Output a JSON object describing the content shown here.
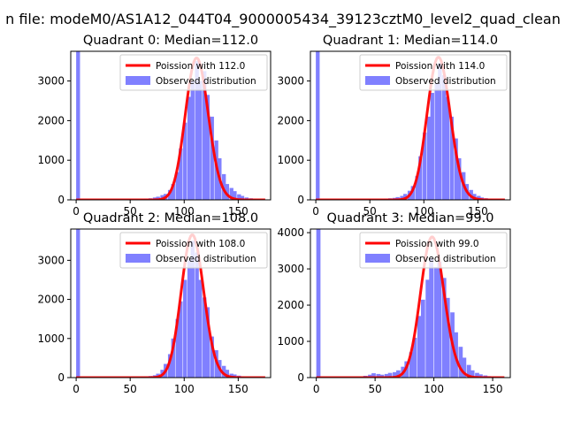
{
  "suptitle": "n file: modeM0/AS1A12_044T04_9000005434_39123cztM0_level2_quad_clean",
  "colors": {
    "bar": "#8080ff",
    "line": "#ff0000",
    "axis": "#000000",
    "background": "#ffffff"
  },
  "chart_data": [
    {
      "type": "bar",
      "title": "Quadrant 0: Median=112.0",
      "xlim": [
        -5,
        180
      ],
      "ylim": [
        0,
        3750
      ],
      "xticks": [
        0,
        50,
        100,
        150
      ],
      "yticks": [
        0,
        1000,
        2000,
        3000
      ],
      "legend": {
        "position": "top-right",
        "entries": [
          "Poission with 112.0",
          "Observed distribution"
        ]
      },
      "bin_width": 3.56,
      "histogram": [
        [
          0,
          3750
        ],
        [
          60,
          20
        ],
        [
          63,
          30
        ],
        [
          67,
          40
        ],
        [
          71,
          60
        ],
        [
          74,
          80
        ],
        [
          78,
          120
        ],
        [
          81,
          150
        ],
        [
          85,
          250
        ],
        [
          88,
          400
        ],
        [
          92,
          700
        ],
        [
          95,
          1300
        ],
        [
          99,
          1950
        ],
        [
          103,
          2600
        ],
        [
          106,
          3000
        ],
        [
          110,
          3500
        ],
        [
          113,
          3000
        ],
        [
          117,
          3250
        ],
        [
          120,
          2650
        ],
        [
          124,
          2100
        ],
        [
          128,
          1500
        ],
        [
          131,
          1050
        ],
        [
          135,
          650
        ],
        [
          138,
          400
        ],
        [
          142,
          300
        ],
        [
          145,
          220
        ],
        [
          149,
          140
        ],
        [
          152,
          100
        ],
        [
          156,
          60
        ],
        [
          160,
          40
        ],
        [
          163,
          20
        ]
      ],
      "line": {
        "name": "Poission with 112.0",
        "mean": 112.0,
        "scale": 3580
      }
    },
    {
      "type": "bar",
      "title": "Quadrant 1: Median=114.0",
      "xlim": [
        -5,
        180
      ],
      "ylim": [
        0,
        3750
      ],
      "xticks": [
        0,
        50,
        100,
        150
      ],
      "yticks": [
        0,
        1000,
        2000,
        3000
      ],
      "legend": {
        "position": "top-right",
        "entries": [
          "Poission with 114.0",
          "Observed distribution"
        ]
      },
      "bin_width": 3.56,
      "histogram": [
        [
          0,
          3750
        ],
        [
          60,
          20
        ],
        [
          63,
          30
        ],
        [
          67,
          40
        ],
        [
          71,
          50
        ],
        [
          74,
          70
        ],
        [
          78,
          100
        ],
        [
          81,
          150
        ],
        [
          85,
          230
        ],
        [
          88,
          350
        ],
        [
          92,
          600
        ],
        [
          95,
          1100
        ],
        [
          99,
          1700
        ],
        [
          103,
          2100
        ],
        [
          106,
          2700
        ],
        [
          110,
          2950
        ],
        [
          113,
          3450
        ],
        [
          117,
          3150
        ],
        [
          120,
          2600
        ],
        [
          124,
          2100
        ],
        [
          128,
          1550
        ],
        [
          131,
          1050
        ],
        [
          135,
          700
        ],
        [
          138,
          400
        ],
        [
          142,
          250
        ],
        [
          145,
          150
        ],
        [
          149,
          100
        ],
        [
          152,
          60
        ],
        [
          156,
          40
        ],
        [
          160,
          20
        ]
      ],
      "line": {
        "name": "Poission with 114.0",
        "mean": 114.0,
        "scale": 3600
      }
    },
    {
      "type": "bar",
      "title": "Quadrant 2: Median=108.0",
      "xlim": [
        -5,
        180
      ],
      "ylim": [
        0,
        3800
      ],
      "xticks": [
        0,
        50,
        100,
        150
      ],
      "yticks": [
        0,
        1000,
        2000,
        3000
      ],
      "legend": {
        "position": "top-right",
        "entries": [
          "Poission with 108.0",
          "Observed distribution"
        ]
      },
      "bin_width": 3.56,
      "histogram": [
        [
          0,
          3800
        ],
        [
          60,
          20
        ],
        [
          63,
          30
        ],
        [
          67,
          40
        ],
        [
          71,
          60
        ],
        [
          74,
          100
        ],
        [
          78,
          200
        ],
        [
          81,
          350
        ],
        [
          85,
          600
        ],
        [
          88,
          1000
        ],
        [
          92,
          1500
        ],
        [
          95,
          1950
        ],
        [
          99,
          2500
        ],
        [
          103,
          3000
        ],
        [
          106,
          3500
        ],
        [
          110,
          3200
        ],
        [
          113,
          2500
        ],
        [
          117,
          2050
        ],
        [
          120,
          1800
        ],
        [
          124,
          1050
        ],
        [
          128,
          700
        ],
        [
          131,
          450
        ],
        [
          135,
          300
        ],
        [
          138,
          200
        ],
        [
          142,
          100
        ],
        [
          145,
          80
        ],
        [
          149,
          50
        ],
        [
          152,
          30
        ]
      ],
      "line": {
        "name": "Poission with 108.0",
        "mean": 108.0,
        "scale": 3650
      }
    },
    {
      "type": "bar",
      "title": "Quadrant 3: Median=99.0",
      "xlim": [
        -5,
        165
      ],
      "ylim": [
        0,
        4100
      ],
      "xticks": [
        0,
        50,
        100,
        150
      ],
      "yticks": [
        0,
        1000,
        2000,
        3000,
        4000
      ],
      "legend": {
        "position": "top-right",
        "entries": [
          "Poission with 99.0",
          "Observed distribution"
        ]
      },
      "bin_width": 3.56,
      "histogram": [
        [
          0,
          4100
        ],
        [
          40,
          50
        ],
        [
          44,
          80
        ],
        [
          47,
          120
        ],
        [
          51,
          100
        ],
        [
          54,
          80
        ],
        [
          58,
          100
        ],
        [
          61,
          130
        ],
        [
          65,
          150
        ],
        [
          68,
          200
        ],
        [
          72,
          300
        ],
        [
          75,
          450
        ],
        [
          79,
          700
        ],
        [
          82,
          1100
        ],
        [
          86,
          1700
        ],
        [
          89,
          2150
        ],
        [
          93,
          2700
        ],
        [
          96,
          3300
        ],
        [
          100,
          3050
        ],
        [
          103,
          3200
        ],
        [
          107,
          2750
        ],
        [
          110,
          2200
        ],
        [
          114,
          1800
        ],
        [
          117,
          1250
        ],
        [
          121,
          850
        ],
        [
          124,
          550
        ],
        [
          128,
          350
        ],
        [
          131,
          200
        ],
        [
          135,
          130
        ],
        [
          138,
          90
        ],
        [
          142,
          60
        ],
        [
          145,
          40
        ],
        [
          149,
          30
        ],
        [
          152,
          20
        ]
      ],
      "line": {
        "name": "Poission with 99.0",
        "mean": 99.0,
        "scale": 3880
      }
    }
  ]
}
